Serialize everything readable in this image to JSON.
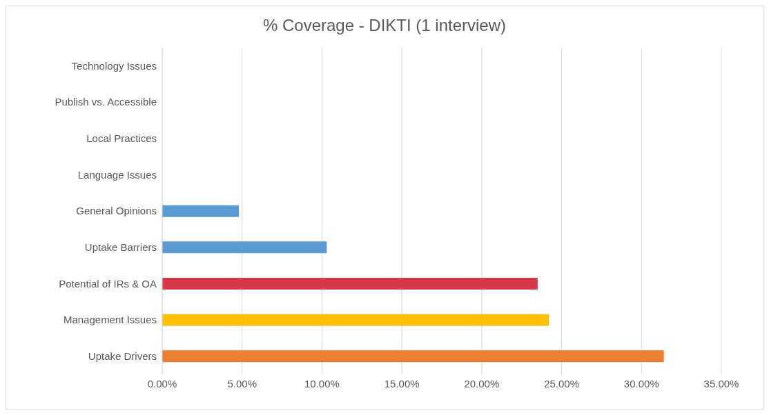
{
  "chart_data": {
    "type": "bar",
    "orientation": "horizontal",
    "title": "% Coverage - DIKTI (1 interview)",
    "categories": [
      "Technology Issues",
      "Publish vs. Accessible",
      "Local Practices",
      "Language Issues",
      "General Opinions",
      "Uptake Barriers",
      "Potential of IRs & OA",
      "Management Issues",
      "Uptake Drivers"
    ],
    "values": [
      0,
      0,
      0,
      0,
      4.8,
      10.3,
      23.5,
      24.2,
      31.4
    ],
    "colors": [
      "#5b9bd5",
      "#5b9bd5",
      "#5b9bd5",
      "#5b9bd5",
      "#5b9bd5",
      "#5b9bd5",
      "#d9374a",
      "#ffc000",
      "#ed7d31"
    ],
    "xlim": [
      0,
      35
    ],
    "xticks": [
      {
        "value": 0,
        "label": "0.00%"
      },
      {
        "value": 5,
        "label": "5.00%"
      },
      {
        "value": 10,
        "label": "10.00%"
      },
      {
        "value": 15,
        "label": "15.00%"
      },
      {
        "value": 20,
        "label": "20.00%"
      },
      {
        "value": 25,
        "label": "25.00%"
      },
      {
        "value": 30,
        "label": "30.00%"
      },
      {
        "value": 35,
        "label": "35.00%"
      }
    ],
    "grid": "x",
    "legend": false
  }
}
